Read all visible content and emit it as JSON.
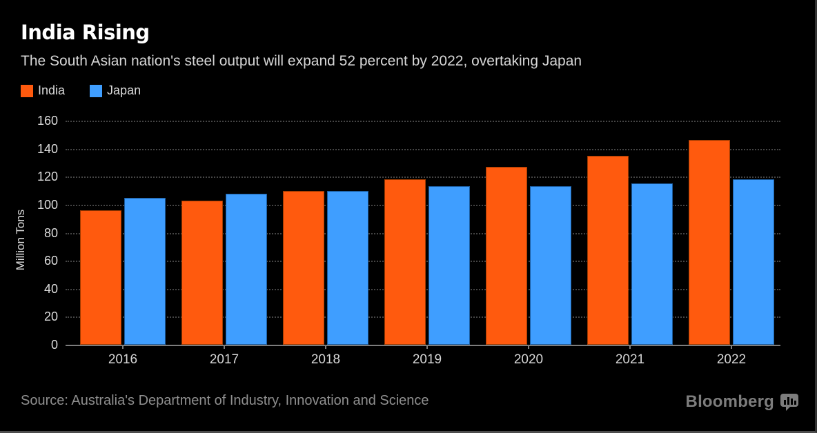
{
  "header": {
    "title": "India Rising",
    "subtitle": "The South Asian nation's steel output will expand 52 percent by 2022, overtaking Japan"
  },
  "footer": {
    "source": "Source: Australia's Department of Industry, Innovation and Science",
    "brand": "Bloomberg",
    "brand_icon": "bar-chart-speech-bubble-icon"
  },
  "colors": {
    "background": "#000000",
    "india": "#ff5a0e",
    "japan": "#3f9eff",
    "grid": "#454545",
    "axis": "#7d7d7d",
    "text_primary": "#ffffff",
    "text_secondary": "#d6d6d6",
    "text_muted": "#8f8f8f"
  },
  "chart_data": {
    "type": "bar",
    "title": "India Rising",
    "subtitle": "The South Asian nation's steel output will expand 52 percent by 2022, overtaking Japan",
    "xlabel": "",
    "ylabel": "Million Tons",
    "categories": [
      "2016",
      "2017",
      "2018",
      "2019",
      "2020",
      "2021",
      "2022"
    ],
    "series": [
      {
        "name": "India",
        "color": "#ff5a0e",
        "stroke": "#9e3a00",
        "values": [
          96,
          103,
          110,
          118,
          127,
          135,
          146
        ]
      },
      {
        "name": "Japan",
        "color": "#3f9eff",
        "stroke": "#1c5c9e",
        "values": [
          105,
          108,
          110,
          113,
          113,
          115,
          118
        ]
      }
    ],
    "ylim": [
      0,
      160
    ],
    "ytick_step": 20,
    "yticks": [
      0,
      20,
      40,
      60,
      80,
      100,
      120,
      140,
      160
    ],
    "grid": "horizontal dotted",
    "legend_position": "top-left"
  }
}
